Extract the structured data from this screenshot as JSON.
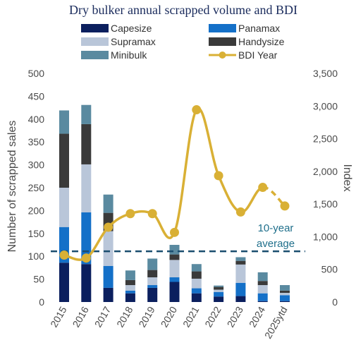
{
  "chart_data": {
    "type": "bar",
    "title": "Dry bulker annual scrapped volume and BDI",
    "ylabel": "Number of scrapped sales",
    "y2label": "Index",
    "ylim": [
      0,
      500
    ],
    "y2lim": [
      0,
      3500
    ],
    "yticks": [
      "0",
      "50",
      "100",
      "150",
      "200",
      "250",
      "300",
      "350",
      "400",
      "450",
      "500"
    ],
    "y2ticks": [
      "0",
      "500",
      "1,000",
      "1,500",
      "2,000",
      "2,500",
      "3,000",
      "3,500"
    ],
    "categories": [
      "2015",
      "2016",
      "2017",
      "2018",
      "2019",
      "2020",
      "2021",
      "2022",
      "2023",
      "2024",
      "2025ytd"
    ],
    "stacked": true,
    "series": [
      {
        "name": "Capesize",
        "color": "#0b1f5e",
        "values": [
          86,
          83,
          31,
          19,
          31,
          44,
          19,
          12,
          13,
          2,
          2
        ]
      },
      {
        "name": "Panamax",
        "color": "#1470c8",
        "values": [
          78,
          113,
          48,
          6,
          6,
          10,
          11,
          10,
          29,
          17,
          13
        ]
      },
      {
        "name": "Supramax",
        "color": "#b9c6d9",
        "values": [
          86,
          105,
          76,
          12,
          17,
          38,
          21,
          5,
          40,
          18,
          5
        ]
      },
      {
        "name": "Handysize",
        "color": "#3a3a3a",
        "values": [
          118,
          88,
          40,
          11,
          16,
          12,
          16,
          6,
          8,
          9,
          5
        ]
      },
      {
        "name": "Minibulk",
        "color": "#5a8aa0",
        "values": [
          51,
          42,
          40,
          21,
          25,
          21,
          16,
          3,
          8,
          19,
          12
        ]
      }
    ],
    "line": {
      "name": "BDI Year",
      "color": "#d9b035",
      "axis": "right",
      "values": [
        718,
        673,
        1145,
        1353,
        1353,
        1066,
        2943,
        1934,
        1378,
        1755,
        1470
      ],
      "dashed_last_segment": true
    },
    "reference_line": {
      "value": 111,
      "color": "#1a4d6e",
      "label_line1": "10-year",
      "label_line2": "average"
    },
    "legend_position": "top"
  }
}
